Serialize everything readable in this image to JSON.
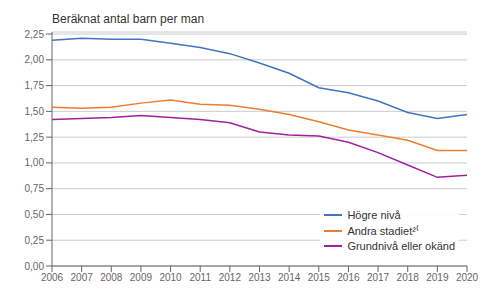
{
  "chart_data": {
    "type": "line",
    "ylabel": "Beräknat antal barn per man",
    "x": [
      2006,
      2007,
      2008,
      2009,
      2010,
      2011,
      2012,
      2013,
      2014,
      2015,
      2016,
      2017,
      2018,
      2019,
      2020
    ],
    "series": [
      {
        "name": "Högre nivå",
        "color": "#4472C4",
        "values": [
          2.19,
          2.21,
          2.2,
          2.2,
          2.16,
          2.12,
          2.06,
          1.97,
          1.87,
          1.73,
          1.68,
          1.6,
          1.49,
          1.43,
          1.47
        ]
      },
      {
        "name": "Andra stadiet²⁽",
        "color": "#ED7D31",
        "values": [
          1.54,
          1.53,
          1.54,
          1.58,
          1.61,
          1.57,
          1.56,
          1.52,
          1.47,
          1.4,
          1.32,
          1.27,
          1.22,
          1.12,
          1.12
        ]
      },
      {
        "name": "Grundnivå eller okänd",
        "color": "#A020A0",
        "values": [
          1.42,
          1.43,
          1.44,
          1.46,
          1.44,
          1.42,
          1.39,
          1.3,
          1.27,
          1.26,
          1.2,
          1.1,
          0.98,
          0.86,
          0.88
        ]
      }
    ],
    "xlim": [
      2006,
      2020
    ],
    "xticks": [
      2006,
      2007,
      2008,
      2009,
      2010,
      2011,
      2012,
      2013,
      2014,
      2015,
      2016,
      2017,
      2018,
      2019,
      2020
    ],
    "ylim": [
      0,
      2.27
    ],
    "yticks": [
      {
        "value": 0,
        "label": "0,00"
      },
      {
        "value": 0.25,
        "label": "0,25"
      },
      {
        "value": 0.5,
        "label": "0,50"
      },
      {
        "value": 0.75,
        "label": "0,75"
      },
      {
        "value": 1.0,
        "label": "1,00"
      },
      {
        "value": 1.25,
        "label": "1,25"
      },
      {
        "value": 1.5,
        "label": "1,50"
      },
      {
        "value": 1.75,
        "label": "1,75"
      },
      {
        "value": 2.0,
        "label": "2,00"
      },
      {
        "value": 2.25,
        "label": "2,25"
      }
    ],
    "grid": "y",
    "legend": "lower right"
  }
}
